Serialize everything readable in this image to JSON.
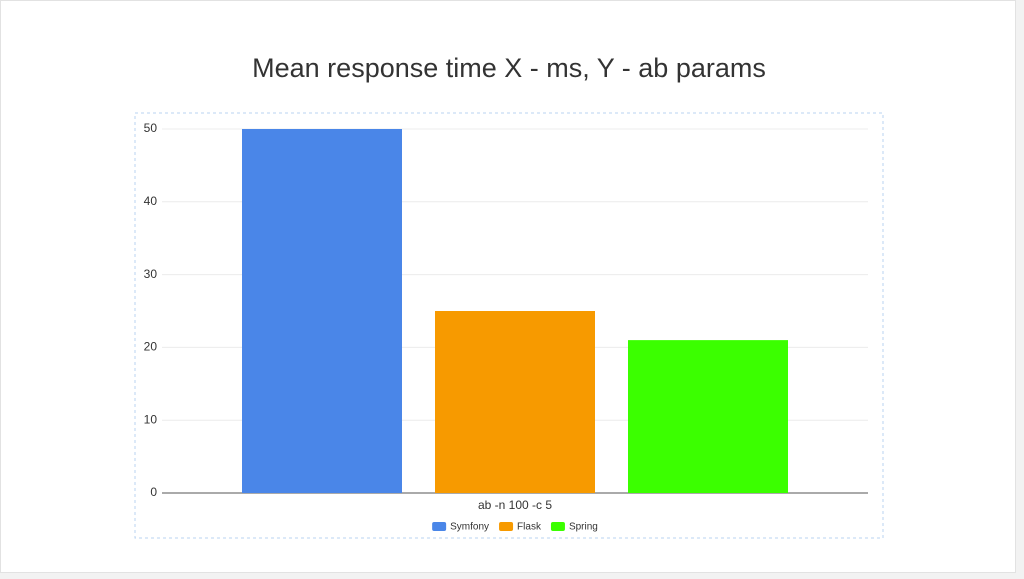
{
  "chart_data": {
    "type": "bar",
    "title": "Mean response time X - ms, Y - ab params",
    "categories": [
      "ab -n 100 -c 5"
    ],
    "series": [
      {
        "name": "Symfony",
        "color": "#4a86e8",
        "values": [
          50
        ]
      },
      {
        "name": "Flask",
        "color": "#f79a00",
        "values": [
          25
        ]
      },
      {
        "name": "Spring",
        "color": "#3bff00",
        "values": [
          21
        ]
      }
    ],
    "ylim": [
      0,
      50
    ],
    "yticks": [
      0,
      10,
      20,
      30,
      40,
      50
    ],
    "grid": true,
    "legend": "bottom"
  }
}
